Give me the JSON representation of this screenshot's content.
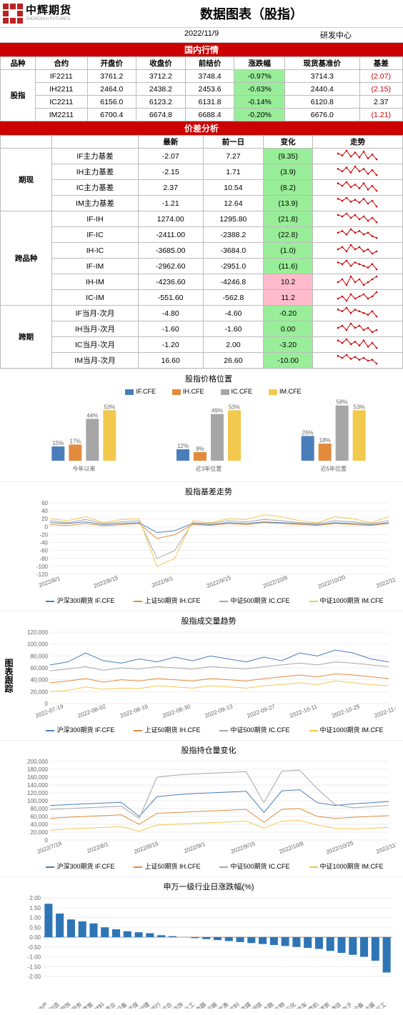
{
  "header": {
    "brand_cn": "中辉期货",
    "brand_en": "ZHONGHUI FUTURES",
    "title": "数据图表（股指）",
    "date": "2022/11/9",
    "dept": "研发中心"
  },
  "bands": {
    "domestic": "国内行情",
    "spread": "价差分析"
  },
  "domestic": {
    "cols": [
      "品种",
      "合约",
      "开盘价",
      "收盘价",
      "前结价",
      "涨跌幅",
      "现货基准价",
      "基差"
    ],
    "rowlabel": "股指",
    "rows": [
      {
        "c": "IF2211",
        "o": "3761.2",
        "cl": "3712.2",
        "p": "3748.4",
        "chg": "-0.97%",
        "spot": "3714.3",
        "basis": "(2.07)",
        "basis_neg": true
      },
      {
        "c": "IH2211",
        "o": "2464.0",
        "cl": "2438.2",
        "p": "2453.6",
        "chg": "-0.63%",
        "spot": "2440.4",
        "basis": "(2.15)",
        "basis_neg": true
      },
      {
        "c": "IC2211",
        "o": "6156.0",
        "cl": "6123.2",
        "p": "6131.8",
        "chg": "-0.14%",
        "spot": "6120.8",
        "basis": "2.37",
        "basis_neg": false
      },
      {
        "c": "IM2211",
        "o": "6700.4",
        "cl": "6674.8",
        "p": "6688.4",
        "chg": "-0.20%",
        "spot": "6676.0",
        "basis": "(1.21)",
        "basis_neg": true
      }
    ]
  },
  "spread": {
    "cols": [
      "",
      "",
      "最新",
      "前一日",
      "变化",
      "走势"
    ],
    "groups": [
      {
        "label": "期现",
        "rows": [
          {
            "n": "IF主力基差",
            "a": "-2.07",
            "b": "7.27",
            "d": "(9.35)",
            "pos": false,
            "spark": [
              9,
              7,
              12,
              6,
              10,
              5,
              11,
              4,
              8,
              3
            ]
          },
          {
            "n": "IH主力基差",
            "a": "-2.15",
            "b": "1.71",
            "d": "(3.9)",
            "pos": false,
            "spark": [
              8,
              6,
              9,
              5,
              10,
              6,
              8,
              4,
              7,
              3
            ]
          },
          {
            "n": "IC主力基差",
            "a": "2.37",
            "b": "10.54",
            "d": "(8.2)",
            "pos": false,
            "spark": [
              10,
              8,
              11,
              7,
              9,
              6,
              10,
              5,
              8,
              4
            ]
          },
          {
            "n": "IM主力基差",
            "a": "-1.21",
            "b": "12.64",
            "d": "(13.9)",
            "pos": false,
            "spark": [
              11,
              9,
              12,
              8,
              10,
              7,
              11,
              6,
              9,
              3
            ]
          }
        ]
      },
      {
        "label": "跨品种",
        "rows": [
          {
            "n": "IF-IH",
            "a": "1274.00",
            "b": "1295.80",
            "d": "(21.8)",
            "pos": false,
            "spark": [
              9,
              8,
              10,
              7,
              9,
              6,
              8,
              5,
              7,
              4
            ]
          },
          {
            "n": "IF-IC",
            "a": "-2411.00",
            "b": "-2388.2",
            "d": "(22.8)",
            "pos": false,
            "spark": [
              8,
              9,
              7,
              10,
              8,
              9,
              7,
              8,
              6,
              5
            ]
          },
          {
            "n": "IH-IC",
            "a": "-3685.00",
            "b": "-3684.0",
            "d": "(1.0)",
            "pos": false,
            "spark": [
              7,
              8,
              6,
              9,
              7,
              8,
              6,
              7,
              5,
              6
            ]
          },
          {
            "n": "IF-IM",
            "a": "-2962.60",
            "b": "-2951.0",
            "d": "(11.6)",
            "pos": false,
            "spark": [
              9,
              8,
              10,
              7,
              9,
              8,
              7,
              6,
              8,
              5
            ]
          },
          {
            "n": "IH-IM",
            "a": "-4236.60",
            "b": "-4246.8",
            "d": "10.2",
            "pos": true,
            "spark": [
              6,
              7,
              5,
              8,
              6,
              7,
              5,
              6,
              7,
              8
            ]
          },
          {
            "n": "IC-IM",
            "a": "-551.60",
            "b": "-562.8",
            "d": "11.2",
            "pos": true,
            "spark": [
              5,
              6,
              4,
              7,
              5,
              6,
              7,
              5,
              6,
              8
            ]
          }
        ]
      },
      {
        "label": "跨期",
        "rows": [
          {
            "n": "IF当月-次月",
            "a": "-4.80",
            "b": "-4.60",
            "d": "-0.20",
            "pos": false,
            "spark": [
              8,
              7,
              9,
              6,
              8,
              7,
              6,
              5,
              7,
              4
            ]
          },
          {
            "n": "IH当月-次月",
            "a": "-1.60",
            "b": "-1.60",
            "d": "0.00",
            "pos": false,
            "spark": [
              7,
              8,
              6,
              9,
              7,
              8,
              6,
              7,
              5,
              6
            ]
          },
          {
            "n": "IC当月-次月",
            "a": "-1.20",
            "b": "2.00",
            "d": "-3.20",
            "pos": false,
            "spark": [
              9,
              7,
              10,
              6,
              8,
              5,
              9,
              4,
              7,
              3
            ]
          },
          {
            "n": "IM当月-次月",
            "a": "16.60",
            "b": "26.60",
            "d": "-10.00",
            "pos": false,
            "spark": [
              10,
              8,
              11,
              7,
              9,
              6,
              8,
              5,
              6,
              2
            ]
          }
        ]
      }
    ]
  },
  "charts_sidelabel": "图表跟踪",
  "colors": {
    "IF": "#4a7ebb",
    "IH": "#e28b3d",
    "IC": "#a6a6a6",
    "IM": "#f2c94c",
    "bar": "#2e75b6"
  },
  "chart1": {
    "title": "股指价格位置",
    "legend": [
      "IF.CFE",
      "IH.CFE",
      "IC.CFE",
      "IM.CFE"
    ],
    "panels": [
      {
        "name": "今年以来",
        "v": [
          15,
          17,
          44,
          53
        ]
      },
      {
        "name": "近3年位置",
        "v": [
          12,
          9,
          49,
          53
        ]
      },
      {
        "name": "近5年位置",
        "v": [
          26,
          18,
          58,
          53
        ]
      }
    ]
  },
  "chart2": {
    "title": "股指基差走势",
    "legend": [
      "沪深300期货 IF.CFE",
      "上证50期货 IH.CFE",
      "中证500期货 IC.CFE",
      "中证1000期货 IM.CFE"
    ],
    "ylim": [
      -120,
      60
    ],
    "yticks": [
      -120,
      -100,
      -80,
      -60,
      -40,
      -20,
      0,
      20,
      40,
      60
    ],
    "xlabels": [
      "2022/8/1",
      "2022/8/15",
      "2022/9/1",
      "2022/9/15",
      "2022/10/8",
      "2022/10/20",
      "2022/11/3"
    ],
    "series": {
      "IF": [
        10,
        8,
        12,
        5,
        8,
        10,
        -15,
        -10,
        8,
        5,
        10,
        8,
        12,
        10,
        8,
        5,
        10,
        8,
        5,
        10
      ],
      "IH": [
        5,
        3,
        8,
        2,
        5,
        8,
        -30,
        -20,
        5,
        3,
        8,
        5,
        10,
        8,
        5,
        3,
        8,
        5,
        3,
        8
      ],
      "IC": [
        15,
        10,
        18,
        8,
        12,
        15,
        -80,
        -60,
        10,
        8,
        15,
        12,
        18,
        15,
        10,
        8,
        15,
        12,
        8,
        15
      ],
      "IM": [
        20,
        15,
        25,
        10,
        18,
        20,
        -100,
        -80,
        15,
        10,
        20,
        18,
        30,
        25,
        15,
        10,
        25,
        20,
        10,
        25
      ]
    }
  },
  "chart3": {
    "title": "股指成交量趋势",
    "legend": [
      "沪深300期货 IF.CFE",
      "上证50期货 IH.CFE",
      "中证500期货 IC.CFE",
      "中证1000期货 IM.CFE"
    ],
    "ylim": [
      0,
      120000
    ],
    "yticks": [
      0,
      20000,
      40000,
      60000,
      80000,
      100000,
      120000
    ],
    "xlabels": [
      "2022-07-19",
      "2022-08-02",
      "2022-08-16",
      "2022-08-30",
      "2022-09-13",
      "2022-09-27",
      "2022-10-11",
      "2022-10-25",
      "2022-11-08"
    ],
    "series": {
      "IF": [
        65,
        70,
        85,
        72,
        68,
        75,
        70,
        78,
        72,
        80,
        75,
        70,
        78,
        72,
        85,
        80,
        90,
        85,
        75,
        70
      ],
      "IH": [
        35,
        38,
        42,
        36,
        40,
        38,
        42,
        40,
        38,
        42,
        40,
        38,
        42,
        45,
        48,
        45,
        50,
        48,
        45,
        42
      ],
      "IC": [
        55,
        58,
        62,
        56,
        60,
        58,
        62,
        60,
        58,
        62,
        60,
        58,
        62,
        65,
        68,
        65,
        70,
        68,
        65,
        62
      ],
      "IM": [
        20,
        22,
        28,
        24,
        26,
        25,
        30,
        28,
        26,
        30,
        28,
        26,
        30,
        32,
        35,
        32,
        38,
        35,
        32,
        30
      ]
    }
  },
  "chart4": {
    "title": "股指持仓量变化",
    "legend": [
      "沪深300期货 IF.CFE",
      "上证50期货 IH.CFE",
      "中证500期货 IC.CFE",
      "中证1000期货 IM.CFE"
    ],
    "ylim": [
      0,
      200000
    ],
    "yticks": [
      0,
      20000,
      40000,
      60000,
      80000,
      100000,
      120000,
      140000,
      160000,
      180000,
      200000
    ],
    "xlabels": [
      "2022/7/19",
      "2022/8/1",
      "2022/8/15",
      "2022/9/1",
      "2022/9/15",
      "2022/10/8",
      "2022/10/25",
      "2022/11/8"
    ],
    "series": {
      "IF": [
        88,
        90,
        92,
        94,
        96,
        60,
        110,
        115,
        118,
        120,
        122,
        124,
        70,
        125,
        128,
        95,
        88,
        92,
        95,
        98
      ],
      "IH": [
        55,
        58,
        60,
        62,
        64,
        40,
        68,
        70,
        72,
        74,
        76,
        78,
        45,
        78,
        80,
        60,
        55,
        58,
        60,
        62
      ],
      "IC": [
        78,
        80,
        82,
        84,
        86,
        55,
        160,
        165,
        168,
        170,
        172,
        174,
        95,
        175,
        178,
        130,
        90,
        82,
        85,
        88
      ],
      "IM": [
        25,
        28,
        30,
        32,
        34,
        22,
        38,
        40,
        42,
        44,
        46,
        48,
        30,
        48,
        50,
        38,
        30,
        28,
        30,
        32
      ]
    }
  },
  "chart5": {
    "title": "申万一级行业日涨跌幅(%)",
    "ylim": [
      -2.0,
      2.0
    ],
    "yticks": [
      -2.0,
      -1.5,
      -1.0,
      -0.5,
      0.0,
      0.5,
      1.0,
      1.5,
      2.0
    ],
    "items": [
      {
        "n": "房地产",
        "v": 1.7
      },
      {
        "n": "轻工制造",
        "v": 1.2
      },
      {
        "n": "纺织服饰",
        "v": 0.9
      },
      {
        "n": "社会服务",
        "v": 0.8
      },
      {
        "n": "商贸零售",
        "v": 0.7
      },
      {
        "n": "建筑材料",
        "v": 0.5
      },
      {
        "n": "公用事业",
        "v": 0.4
      },
      {
        "n": "机械设备",
        "v": 0.3
      },
      {
        "n": "环保",
        "v": 0.25
      },
      {
        "n": "美容护理",
        "v": 0.2
      },
      {
        "n": "银行",
        "v": 0.1
      },
      {
        "n": "综合",
        "v": 0.05
      },
      {
        "n": "建筑装饰",
        "v": 0.0
      },
      {
        "n": "基础化工",
        "v": -0.05
      },
      {
        "n": "家用电器",
        "v": -0.1
      },
      {
        "n": "交通运输",
        "v": -0.15
      },
      {
        "n": "农林牧渔",
        "v": -0.2
      },
      {
        "n": "食品饮料",
        "v": -0.25
      },
      {
        "n": "传媒",
        "v": -0.3
      },
      {
        "n": "钢铁",
        "v": -0.35
      },
      {
        "n": "非银金融",
        "v": -0.4
      },
      {
        "n": "医药生物",
        "v": -0.45
      },
      {
        "n": "石油石化",
        "v": -0.5
      },
      {
        "n": "汽车",
        "v": -0.55
      },
      {
        "n": "计算机",
        "v": -0.6
      },
      {
        "n": "煤炭",
        "v": -0.7
      },
      {
        "n": "通信",
        "v": -0.8
      },
      {
        "n": "电子",
        "v": -0.9
      },
      {
        "n": "电力设备",
        "v": -1.0
      },
      {
        "n": "有色金属",
        "v": -1.2
      },
      {
        "n": "国防军工",
        "v": -1.8
      }
    ]
  }
}
